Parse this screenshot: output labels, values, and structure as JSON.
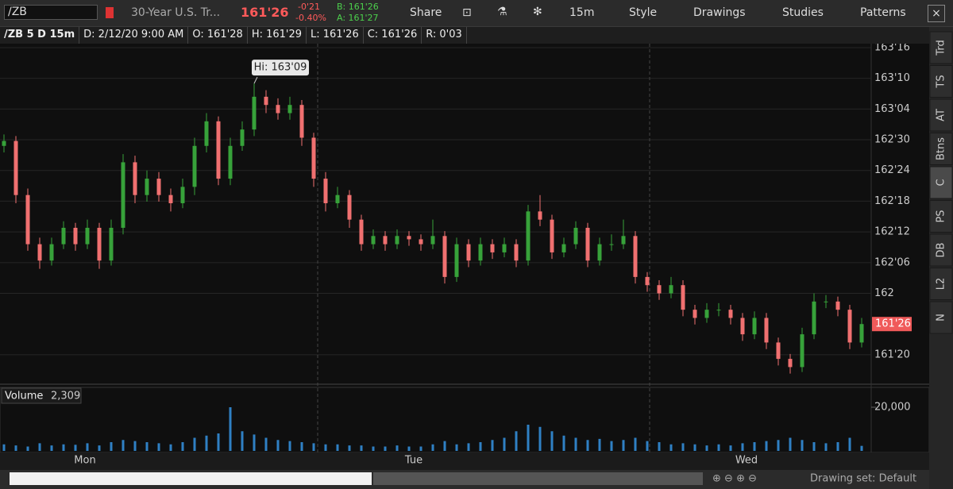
{
  "toolbar": {
    "symbol": "/ZB",
    "description": "30-Year U.S. Tr...",
    "last": "161'26",
    "change": "-0'21",
    "change_pct": "-0.40%",
    "bid": "B: 161'26",
    "ask": "A: 161'27",
    "buttons": [
      "Share",
      "15m",
      "Style",
      "Drawings",
      "Studies",
      "Patterns"
    ]
  },
  "info_bar": [
    "/ZB 5 D 15m",
    "D: 2/12/20 9:00 AM",
    "O: 161'28",
    "H: 161'29",
    "L: 161'26",
    "C: 161'26",
    "R: 0'03"
  ],
  "chart_data": [
    {
      "type": "candlestick",
      "annotation": "Hi: 163'09",
      "last_label": "161'26",
      "colors": {
        "up": "#37a23a",
        "down": "#f07070"
      },
      "day_labels": [
        "Mon",
        "Tue",
        "Wed"
      ],
      "ylim": [
        161.455,
        163.524
      ],
      "yticks": [
        {
          "value": 163.5,
          "label": "163'16"
        },
        {
          "value": 163.3125,
          "label": "163'10"
        },
        {
          "value": 163.125,
          "label": "163'04"
        },
        {
          "value": 162.9375,
          "label": "162'30"
        },
        {
          "value": 162.75,
          "label": "162'24"
        },
        {
          "value": 162.5625,
          "label": "162'18"
        },
        {
          "value": 162.375,
          "label": "162'12"
        },
        {
          "value": 162.1875,
          "label": "162'06"
        },
        162,
        {
          "value": 161.625,
          "label": "161'20"
        }
      ],
      "ohlc": [
        [
          162.9,
          162.97,
          162.86,
          162.93
        ],
        [
          162.93,
          162.96,
          162.55,
          162.6
        ],
        [
          162.6,
          162.64,
          162.26,
          162.3
        ],
        [
          162.3,
          162.34,
          162.15,
          162.2
        ],
        [
          162.2,
          162.34,
          162.17,
          162.3
        ],
        [
          162.3,
          162.44,
          162.27,
          162.4
        ],
        [
          162.4,
          162.43,
          162.26,
          162.3
        ],
        [
          162.3,
          162.45,
          162.27,
          162.4
        ],
        [
          162.4,
          162.43,
          162.15,
          162.2
        ],
        [
          162.2,
          162.45,
          162.17,
          162.4
        ],
        [
          162.4,
          162.85,
          162.36,
          162.8
        ],
        [
          162.8,
          162.84,
          162.55,
          162.6
        ],
        [
          162.6,
          162.75,
          162.56,
          162.7
        ],
        [
          162.7,
          162.74,
          162.56,
          162.6
        ],
        [
          162.6,
          162.64,
          162.5,
          162.55
        ],
        [
          162.55,
          162.7,
          162.52,
          162.65
        ],
        [
          162.65,
          162.95,
          162.6,
          162.9
        ],
        [
          162.9,
          163.1,
          162.86,
          163.05
        ],
        [
          163.05,
          163.08,
          162.66,
          162.7
        ],
        [
          162.7,
          162.95,
          162.66,
          162.9
        ],
        [
          162.9,
          163.05,
          162.87,
          163.0
        ],
        [
          163.0,
          163.28125,
          162.96,
          163.2
        ],
        [
          163.2,
          163.24,
          163.1,
          163.15
        ],
        [
          163.15,
          163.19,
          163.06,
          163.1
        ],
        [
          163.1,
          163.2,
          163.06,
          163.15
        ],
        [
          163.15,
          163.18,
          162.9,
          162.95
        ],
        [
          162.95,
          162.98,
          162.65,
          162.7
        ],
        [
          162.7,
          162.74,
          162.5,
          162.55
        ],
        [
          162.55,
          162.65,
          162.52,
          162.6
        ],
        [
          162.6,
          162.63,
          162.4,
          162.45
        ],
        [
          162.45,
          162.48,
          162.26,
          162.3
        ],
        [
          162.3,
          162.39,
          162.27,
          162.35
        ],
        [
          162.35,
          162.38,
          162.26,
          162.3
        ],
        [
          162.3,
          162.39,
          162.27,
          162.35
        ],
        [
          162.35,
          162.38,
          162.29,
          162.33
        ],
        [
          162.33,
          162.36,
          162.26,
          162.3
        ],
        [
          162.3,
          162.45,
          162.27,
          162.35
        ],
        [
          162.35,
          162.38,
          162.06,
          162.1
        ],
        [
          162.1,
          162.34,
          162.07,
          162.3
        ],
        [
          162.3,
          162.33,
          162.16,
          162.2
        ],
        [
          162.2,
          162.34,
          162.17,
          162.3
        ],
        [
          162.3,
          162.33,
          162.21,
          162.25
        ],
        [
          162.25,
          162.34,
          162.22,
          162.3
        ],
        [
          162.3,
          162.33,
          162.16,
          162.2
        ],
        [
          162.2,
          162.54,
          162.17,
          162.5
        ],
        [
          162.5,
          162.6,
          162.41,
          162.45
        ],
        [
          162.45,
          162.48,
          162.21,
          162.25
        ],
        [
          162.25,
          162.34,
          162.22,
          162.3
        ],
        [
          162.3,
          162.44,
          162.27,
          162.4
        ],
        [
          162.4,
          162.43,
          162.16,
          162.2
        ],
        [
          162.2,
          162.34,
          162.17,
          162.3
        ],
        [
          162.3,
          162.36,
          162.26,
          162.3
        ],
        [
          162.3,
          162.45,
          162.27,
          162.35
        ],
        [
          162.35,
          162.38,
          162.06,
          162.1
        ],
        [
          162.1,
          162.13,
          162.01,
          162.05
        ],
        [
          162.05,
          162.08,
          161.96,
          162.0
        ],
        [
          162.0,
          162.1,
          161.97,
          162.05
        ],
        [
          162.05,
          162.08,
          161.86,
          161.9
        ],
        [
          161.9,
          161.93,
          161.81,
          161.85
        ],
        [
          161.85,
          161.94,
          161.82,
          161.9
        ],
        [
          161.9,
          161.94,
          161.86,
          161.9
        ],
        [
          161.9,
          161.93,
          161.81,
          161.85
        ],
        [
          161.85,
          161.88,
          161.71,
          161.75
        ],
        [
          161.75,
          161.89,
          161.72,
          161.85
        ],
        [
          161.85,
          161.88,
          161.66,
          161.7
        ],
        [
          161.7,
          161.73,
          161.56,
          161.6
        ],
        [
          161.6,
          161.63,
          161.51,
          161.55
        ],
        [
          161.55,
          161.79,
          161.52,
          161.75
        ],
        [
          161.75,
          162.0,
          161.72,
          161.95
        ],
        [
          161.95,
          161.99,
          161.91,
          161.95
        ],
        [
          161.95,
          161.98,
          161.86,
          161.9
        ],
        [
          161.9,
          161.93,
          161.66,
          161.7
        ],
        [
          161.7,
          161.85,
          161.67,
          161.8125
        ]
      ]
    },
    {
      "type": "bar",
      "title": "Volume",
      "value_label": "2,309",
      "color": "#2f80c4",
      "ylim": [
        0,
        28364
      ],
      "yticks": [
        {
          "value": 20000,
          "label": "20,000"
        }
      ],
      "values": [
        3000,
        2500,
        2000,
        3500,
        2500,
        3000,
        2800,
        3500,
        2500,
        4000,
        5000,
        4500,
        4000,
        3500,
        3000,
        4000,
        6000,
        7000,
        8000,
        20000,
        9000,
        7500,
        6000,
        5000,
        4500,
        4000,
        3500,
        3000,
        3000,
        2500,
        2500,
        2000,
        2000,
        2500,
        2000,
        2000,
        3000,
        4500,
        3000,
        3500,
        4000,
        5000,
        6000,
        9000,
        12000,
        11000,
        9000,
        7000,
        6000,
        5000,
        5500,
        4500,
        5000,
        6000,
        4500,
        4000,
        3000,
        3500,
        3000,
        2500,
        3000,
        2500,
        3500,
        4000,
        4500,
        5000,
        6000,
        5000,
        4000,
        3500,
        4000,
        6000,
        2309
      ]
    }
  ],
  "side_tabs": [
    "Trd",
    "TS",
    "AT",
    "Btns",
    "C",
    "PS",
    "DB",
    "L2",
    "N"
  ],
  "footer": {
    "drawing_set": "Drawing set: Default"
  }
}
